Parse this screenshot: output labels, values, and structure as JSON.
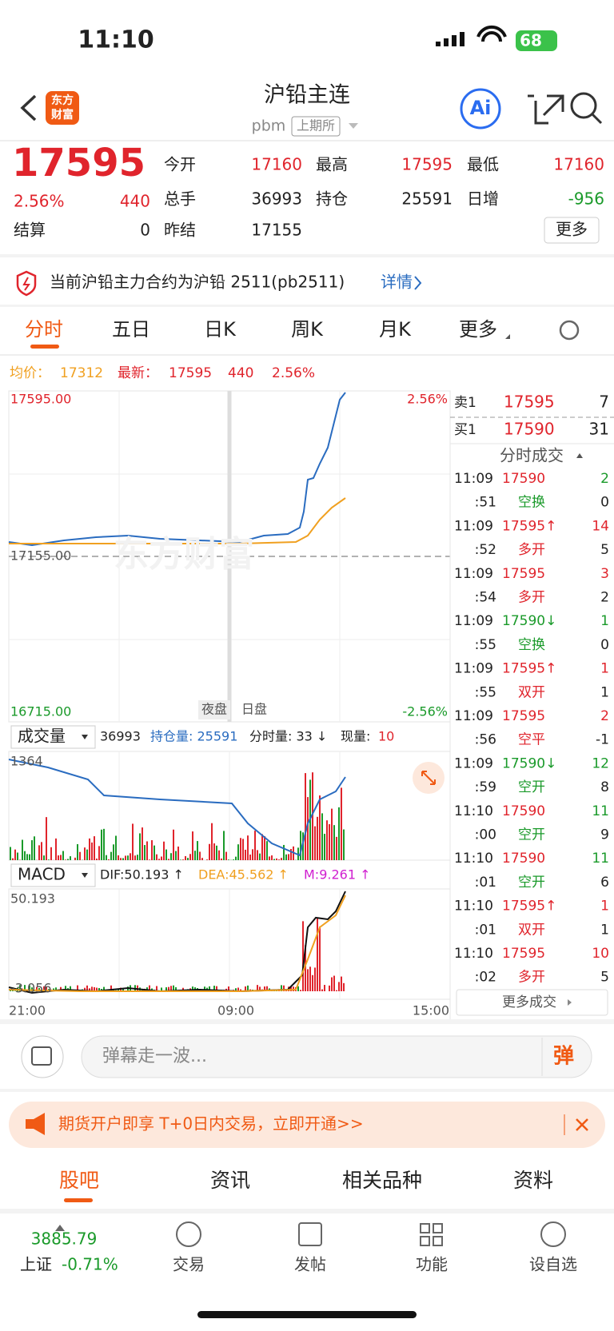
{
  "status": {
    "time": "11:10",
    "battery": "68"
  },
  "header": {
    "logo_top": "东方",
    "logo_bottom": "财富",
    "title": "沪铅主连",
    "code": "pbm",
    "exchange": "上期所",
    "ai": "Ai"
  },
  "quote": {
    "price": "17595",
    "change_pct": "2.56%",
    "change": "440",
    "fields": [
      {
        "label": "今开",
        "value": "17160"
      },
      {
        "label": "最高",
        "value": "17595"
      },
      {
        "label": "最低",
        "value": "17160"
      },
      {
        "label": "总手",
        "value": "36993"
      },
      {
        "label": "持仓",
        "value": "25591"
      },
      {
        "label": "日增",
        "value": "-956"
      }
    ],
    "settle_label": "结算",
    "settle": "0",
    "prev_label": "昨结",
    "prev": "17155",
    "more": "更多"
  },
  "notice": {
    "text": "当前沪铅主力合约为沪铅 2511(pb2511)",
    "link": "详情"
  },
  "tabs": [
    "分时",
    "五日",
    "日K",
    "周K",
    "月K",
    "更多"
  ],
  "summary": {
    "avg_label": "均价：",
    "avg": "17312",
    "latest_label": "最新：",
    "latest": "17595",
    "change": "440",
    "pct": "2.56%"
  },
  "price_chart": {
    "top": "17595.00",
    "top_pct": "2.56%",
    "mid": "17155.00",
    "bottom": "16715.00",
    "bottom_pct": "-2.56%",
    "night": "夜盘",
    "day": "日盘",
    "watermark": "东方财富"
  },
  "volume": {
    "selector": "成交量",
    "total": "36993",
    "oi": "持仓量: 25591",
    "minute": "分时量: 33 ↓",
    "current_label": "现量: ",
    "current": "10",
    "axis_top": "1364"
  },
  "macd": {
    "selector": "MACD",
    "dif": "DIF:50.193 ↑",
    "dea": "DEA:45.562 ↑",
    "m": "M:9.261 ↑",
    "top": "50.193",
    "bottom": "-3.056"
  },
  "x_labels": [
    "21:00",
    "09:00",
    "15:00"
  ],
  "orderbook": {
    "sell_label": "卖1",
    "sell_price": "17595",
    "sell_vol": "7",
    "buy_label": "买1",
    "buy_price": "17590",
    "buy_vol": "31"
  },
  "trades_title": "分时成交",
  "trades": [
    [
      "11:09",
      "17590",
      "2"
    ],
    [
      ":51",
      "空换",
      "0"
    ],
    [
      "11:09",
      "17595↑",
      "14"
    ],
    [
      ":52",
      "多开",
      "5"
    ],
    [
      "11:09",
      "17595",
      "3"
    ],
    [
      ":54",
      "多开",
      "2"
    ],
    [
      "11:09",
      "17590↓",
      "1"
    ],
    [
      ":55",
      "空换",
      "0"
    ],
    [
      "11:09",
      "17595↑",
      "1"
    ],
    [
      ":55",
      "双开",
      "1"
    ],
    [
      "11:09",
      "17595",
      "2"
    ],
    [
      ":56",
      "空平",
      "-1"
    ],
    [
      "11:09",
      "17590↓",
      "12"
    ],
    [
      ":59",
      "空开",
      "8"
    ],
    [
      "11:10",
      "17590",
      "11"
    ],
    [
      ":00",
      "空开",
      "9"
    ],
    [
      "11:10",
      "17590",
      "11"
    ],
    [
      ":01",
      "空开",
      "6"
    ],
    [
      "11:10",
      "17595↑",
      "1"
    ],
    [
      ":01",
      "双开",
      "1"
    ],
    [
      "11:10",
      "17595",
      "10"
    ],
    [
      ":02",
      "多开",
      "5"
    ]
  ],
  "more_trades": "更多成交",
  "comment": {
    "placeholder": "弹幕走一波...",
    "button": "弹"
  },
  "ad": "期货开户即享 T+0日内交易，立即开通>>",
  "bottom_tabs": [
    "股吧",
    "资讯",
    "相关品种",
    "资料"
  ],
  "nav": {
    "index_value": "3885.79",
    "index_name": "上证",
    "index_change": "-0.71%",
    "items": [
      "交易",
      "发帖",
      "功能",
      "设自选"
    ]
  }
}
